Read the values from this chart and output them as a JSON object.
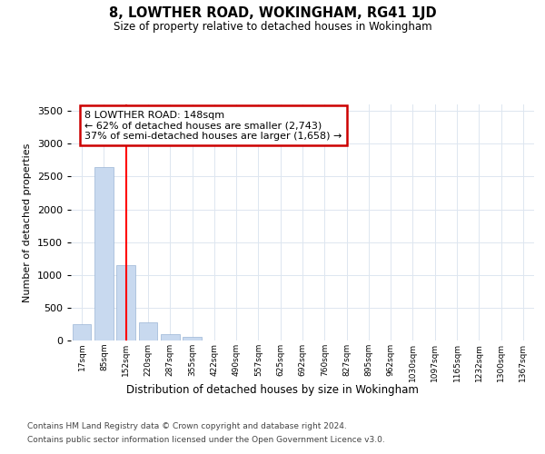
{
  "title": "8, LOWTHER ROAD, WOKINGHAM, RG41 1JD",
  "subtitle": "Size of property relative to detached houses in Wokingham",
  "xlabel": "Distribution of detached houses by size in Wokingham",
  "ylabel": "Number of detached properties",
  "categories": [
    "17sqm",
    "85sqm",
    "152sqm",
    "220sqm",
    "287sqm",
    "355sqm",
    "422sqm",
    "490sqm",
    "557sqm",
    "625sqm",
    "692sqm",
    "760sqm",
    "827sqm",
    "895sqm",
    "962sqm",
    "1030sqm",
    "1097sqm",
    "1165sqm",
    "1232sqm",
    "1300sqm",
    "1367sqm"
  ],
  "values": [
    250,
    2650,
    1150,
    280,
    100,
    60,
    5,
    5,
    0,
    0,
    0,
    0,
    0,
    0,
    0,
    0,
    0,
    0,
    0,
    0,
    0
  ],
  "bar_color": "#c8d9ef",
  "bar_edge_color": "#9ab5d5",
  "redline_index": 2,
  "annotation_text": "8 LOWTHER ROAD: 148sqm\n← 62% of detached houses are smaller (2,743)\n37% of semi-detached houses are larger (1,658) →",
  "annotation_box_color": "#ffffff",
  "annotation_box_edge": "#cc0000",
  "ylim": [
    0,
    3600
  ],
  "yticks": [
    0,
    500,
    1000,
    1500,
    2000,
    2500,
    3000,
    3500
  ],
  "grid_color": "#dde6f0",
  "background_color": "#ffffff",
  "footer_line1": "Contains HM Land Registry data © Crown copyright and database right 2024.",
  "footer_line2": "Contains public sector information licensed under the Open Government Licence v3.0."
}
